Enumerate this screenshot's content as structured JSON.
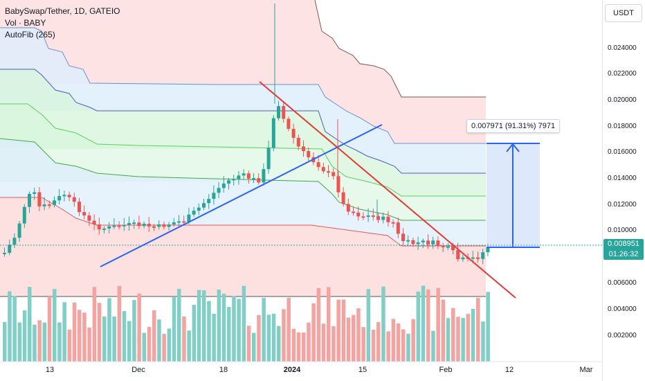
{
  "legend": {
    "symbol": "BabySwap/Tether, 1D, GATEIO",
    "volume": "Vol · BABY",
    "autofib": "AutoFib (265)"
  },
  "currency_button": "USDT",
  "y_ticks": [
    "0.024000",
    "0.022000",
    "0.020000",
    "0.018000",
    "0.016000",
    "0.014000",
    "0.012000",
    "0.010000",
    "0.006000",
    "0.004000",
    "0.002000"
  ],
  "x_ticks": [
    "13",
    "Dec",
    "18",
    "2024",
    "15",
    "Feb",
    "12",
    "Mar"
  ],
  "current_price": {
    "value": "0.008951",
    "countdown": "01:26:32"
  },
  "measure_label": "0.007971 (91.31%) 7971",
  "colors": {
    "up": "#26a69a",
    "down": "#ef5350",
    "trendline_blue": "#2962ff",
    "trendline_red": "#e53935"
  }
}
